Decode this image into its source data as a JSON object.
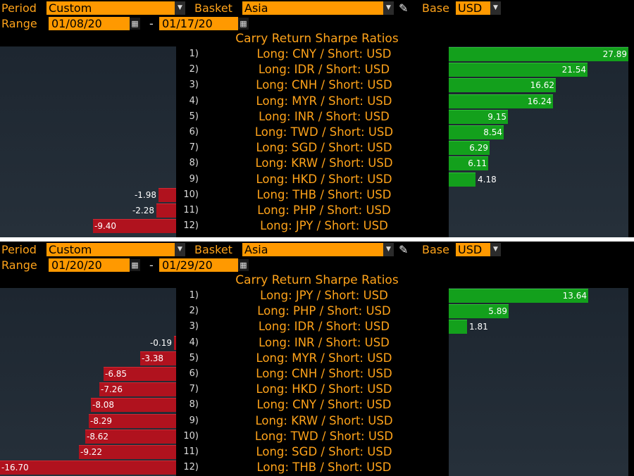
{
  "panels": [
    {
      "period_label": "Period",
      "period_value": "Custom",
      "basket_label": "Basket",
      "basket_value": "Asia",
      "base_label": "Base",
      "base_value": "USD",
      "range_label": "Range",
      "range_start": "01/08/20",
      "range_end": "01/17/20",
      "range_sep": "-",
      "title": "Carry Return Sharpe Ratios",
      "rows": [
        {
          "rank": "1)",
          "pair": "Long: CNY / Short: USD",
          "value": 27.89,
          "label": "27.89"
        },
        {
          "rank": "2)",
          "pair": "Long: IDR / Short: USD",
          "value": 21.54,
          "label": "21.54"
        },
        {
          "rank": "3)",
          "pair": "Long: CNH / Short: USD",
          "value": 16.62,
          "label": "16.62"
        },
        {
          "rank": "4)",
          "pair": "Long: MYR / Short: USD",
          "value": 16.24,
          "label": "16.24"
        },
        {
          "rank": "5)",
          "pair": "Long: INR / Short: USD",
          "value": 9.15,
          "label": "9.15"
        },
        {
          "rank": "6)",
          "pair": "Long: TWD / Short: USD",
          "value": 8.54,
          "label": "8.54"
        },
        {
          "rank": "7)",
          "pair": "Long: SGD / Short: USD",
          "value": 6.29,
          "label": "6.29"
        },
        {
          "rank": "8)",
          "pair": "Long: KRW / Short: USD",
          "value": 6.11,
          "label": "6.11"
        },
        {
          "rank": "9)",
          "pair": "Long: HKD / Short: USD",
          "value": 4.18,
          "label": "4.18"
        },
        {
          "rank": "10)",
          "pair": "Long: THB / Short: USD",
          "value": -1.98,
          "label": "-1.98"
        },
        {
          "rank": "11)",
          "pair": "Long: PHP / Short: USD",
          "value": -2.28,
          "label": "-2.28"
        },
        {
          "rank": "12)",
          "pair": "Long: JPY / Short: USD",
          "value": -9.4,
          "label": "-9.40"
        }
      ]
    },
    {
      "period_label": "Period",
      "period_value": "Custom",
      "basket_label": "Basket",
      "basket_value": "Asia",
      "base_label": "Base",
      "base_value": "USD",
      "range_label": "Range",
      "range_start": "01/20/20",
      "range_end": "01/29/20",
      "range_sep": "-",
      "title": "Carry Return Sharpe Ratios",
      "rows": [
        {
          "rank": "1)",
          "pair": "Long: JPY / Short: USD",
          "value": 13.64,
          "label": "13.64"
        },
        {
          "rank": "2)",
          "pair": "Long: PHP / Short: USD",
          "value": 5.89,
          "label": "5.89"
        },
        {
          "rank": "3)",
          "pair": "Long: IDR / Short: USD",
          "value": 1.81,
          "label": "1.81"
        },
        {
          "rank": "4)",
          "pair": "Long: INR / Short: USD",
          "value": -0.19,
          "label": "-0.19"
        },
        {
          "rank": "5)",
          "pair": "Long: MYR / Short: USD",
          "value": -3.38,
          "label": "-3.38"
        },
        {
          "rank": "6)",
          "pair": "Long: CNH / Short: USD",
          "value": -6.85,
          "label": "-6.85"
        },
        {
          "rank": "7)",
          "pair": "Long: HKD / Short: USD",
          "value": -7.26,
          "label": "-7.26"
        },
        {
          "rank": "8)",
          "pair": "Long: CNY / Short: USD",
          "value": -8.08,
          "label": "-8.08"
        },
        {
          "rank": "9)",
          "pair": "Long: KRW / Short: USD",
          "value": -8.29,
          "label": "-8.29"
        },
        {
          "rank": "10)",
          "pair": "Long: TWD / Short: USD",
          "value": -8.62,
          "label": "-8.62"
        },
        {
          "rank": "11)",
          "pair": "Long: SGD / Short: USD",
          "value": -9.22,
          "label": "-9.22"
        },
        {
          "rank": "12)",
          "pair": "Long: THB / Short: USD",
          "value": -16.7,
          "label": "-16.70"
        }
      ]
    }
  ],
  "icons": {
    "dropdown": "chevron-down-icon",
    "calendar": "calendar-icon",
    "edit": "pencil-icon"
  },
  "colors": {
    "label_orange": "#ffa31a",
    "field_orange": "#ff9900",
    "positive_green": "#13a01c",
    "negative_red": "#b0121e",
    "bar_panel_bg": "#1d2630"
  },
  "chart_data": [
    {
      "type": "bar",
      "title": "Carry Return Sharpe Ratios",
      "categories": [
        "Long: CNY / Short: USD",
        "Long: IDR / Short: USD",
        "Long: CNH / Short: USD",
        "Long: MYR / Short: USD",
        "Long: INR / Short: USD",
        "Long: TWD / Short: USD",
        "Long: SGD / Short: USD",
        "Long: KRW / Short: USD",
        "Long: HKD / Short: USD",
        "Long: THB / Short: USD",
        "Long: PHP / Short: USD",
        "Long: JPY / Short: USD"
      ],
      "values": [
        27.89,
        21.54,
        16.62,
        16.24,
        9.15,
        8.54,
        6.29,
        6.11,
        4.18,
        -1.98,
        -2.28,
        -9.4
      ]
    },
    {
      "type": "bar",
      "title": "Carry Return Sharpe Ratios",
      "categories": [
        "Long: JPY / Short: USD",
        "Long: PHP / Short: USD",
        "Long: IDR / Short: USD",
        "Long: INR / Short: USD",
        "Long: MYR / Short: USD",
        "Long: CNH / Short: USD",
        "Long: HKD / Short: USD",
        "Long: CNY / Short: USD",
        "Long: KRW / Short: USD",
        "Long: TWD / Short: USD",
        "Long: SGD / Short: USD",
        "Long: THB / Short: USD"
      ],
      "values": [
        13.64,
        5.89,
        1.81,
        -0.19,
        -3.38,
        -6.85,
        -7.26,
        -8.08,
        -8.29,
        -8.62,
        -9.22,
        -16.7
      ]
    }
  ]
}
